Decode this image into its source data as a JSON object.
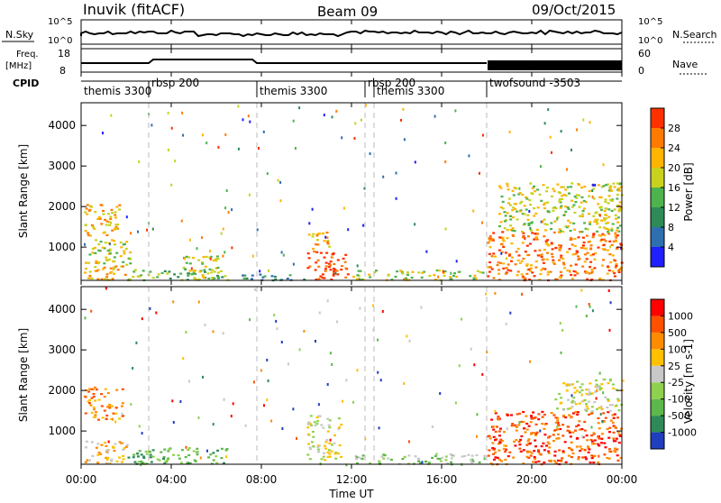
{
  "header": {
    "station": "Inuvik (fitACF)",
    "beam": "Beam 09",
    "date": "09/Oct/2015"
  },
  "top_panels": {
    "nsky_label": "N.Sky",
    "nsky_ticks": [
      "10^5",
      "10^0"
    ],
    "nsearch_label": "N.Search",
    "nsearch_ticks": [
      "10^5",
      "10^0"
    ],
    "freq_label": "Freq.",
    "freq_unit": "[MHz]",
    "freq_ticks": [
      "18",
      "8"
    ],
    "nave_label": "Nave",
    "nave_ticks": [
      "60",
      "0"
    ],
    "cpid_label": "CPID",
    "cpid_segments": [
      {
        "name": "themis 3300",
        "start": 0.0,
        "end": 3.0
      },
      {
        "name": "rbsp 200",
        "start": 3.0,
        "end": 7.8
      },
      {
        "name": "themis 3300",
        "start": 7.8,
        "end": 12.6
      },
      {
        "name": "rbsp 200",
        "start": 12.6,
        "end": 13.0
      },
      {
        "name": "themis 3300",
        "start": 13.0,
        "end": 18.0
      },
      {
        "name": "twofsound -3503",
        "start": 18.0,
        "end": 24.0
      }
    ]
  },
  "chart_data": [
    {
      "type": "heatmap",
      "title": "Power",
      "ylabel": "Slant Range [km]",
      "xlabel": "",
      "xlim": [
        0,
        24
      ],
      "ylim": [
        180,
        4560
      ],
      "yticks": [
        "1000",
        "2000",
        "3000",
        "4000"
      ],
      "colorbar": {
        "label": "Power [dB]",
        "ticks": [
          "4",
          "8",
          "12",
          "16",
          "20",
          "24",
          "28"
        ],
        "colors": [
          "#1f1fff",
          "#2e6fb0",
          "#2e8b57",
          "#4db34d",
          "#c8d21e",
          "#ffb400",
          "#ff7a00",
          "#ff3000"
        ]
      },
      "regions": [
        {
          "t0": 0.1,
          "t1": 2.0,
          "r0": 200,
          "r1": 700,
          "level": 5
        },
        {
          "t0": 0.1,
          "t1": 1.8,
          "r0": 1300,
          "r1": 2100,
          "level": 5
        },
        {
          "t0": 0.3,
          "t1": 2.2,
          "r0": 600,
          "r1": 1200,
          "level": 4
        },
        {
          "t0": 2.0,
          "t1": 6.5,
          "r0": 200,
          "r1": 500,
          "level": 3
        },
        {
          "t0": 4.5,
          "t1": 6.2,
          "r0": 200,
          "r1": 800,
          "level": 4
        },
        {
          "t0": 6.5,
          "t1": 10.0,
          "r0": 200,
          "r1": 350,
          "level": 2
        },
        {
          "t0": 10.0,
          "t1": 11.8,
          "r0": 200,
          "r1": 900,
          "level": 7
        },
        {
          "t0": 10.0,
          "t1": 11.0,
          "r0": 900,
          "r1": 1400,
          "level": 5
        },
        {
          "t0": 12.0,
          "t1": 18.0,
          "r0": 200,
          "r1": 450,
          "level": 4
        },
        {
          "t0": 18.0,
          "t1": 24.0,
          "r0": 200,
          "r1": 1400,
          "level": 6
        },
        {
          "t0": 18.5,
          "t1": 24.0,
          "r0": 1400,
          "r1": 2600,
          "level": 4
        }
      ]
    },
    {
      "type": "heatmap",
      "title": "Velocity",
      "ylabel": "Slant Range [km]",
      "xlabel": "Time UT",
      "xlim": [
        0,
        24
      ],
      "ylim": [
        180,
        4560
      ],
      "yticks": [
        "1000",
        "2000",
        "3000",
        "4000"
      ],
      "xticks": [
        "00:00",
        "04:00",
        "08:00",
        "12:00",
        "16:00",
        "20:00",
        "00:00"
      ],
      "colorbar": {
        "label": "Velocity [m s-1]",
        "ticks": [
          "1000",
          "500",
          "100",
          "25",
          "-25",
          "-100",
          "-500",
          "-1000"
        ],
        "colors": [
          "#1f3fbf",
          "#2e8b57",
          "#5cb84a",
          "#8fd14f",
          "#c8c8c8",
          "#ffc000",
          "#ff8c00",
          "#ff5000",
          "#ff0000"
        ]
      },
      "regions": [
        {
          "t0": 0.1,
          "t1": 1.8,
          "r0": 1300,
          "r1": 2100,
          "level": 6
        },
        {
          "t0": 0.1,
          "t1": 2.0,
          "r0": 200,
          "r1": 800,
          "level": 5
        },
        {
          "t0": 2.0,
          "t1": 6.5,
          "r0": 200,
          "r1": 600,
          "level": 2
        },
        {
          "t0": 10.0,
          "t1": 11.5,
          "r0": 300,
          "r1": 1400,
          "level": 4
        },
        {
          "t0": 12.0,
          "t1": 18.0,
          "r0": 200,
          "r1": 450,
          "level": 3
        },
        {
          "t0": 18.0,
          "t1": 24.0,
          "r0": 200,
          "r1": 1500,
          "level": 7
        },
        {
          "t0": 21.0,
          "t1": 24.0,
          "r0": 1500,
          "r1": 2300,
          "level": 4
        }
      ]
    }
  ]
}
